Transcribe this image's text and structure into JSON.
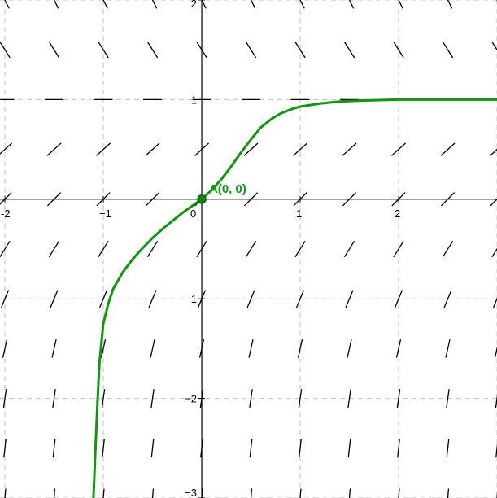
{
  "chart_data": {
    "type": "line",
    "title": "",
    "xlabel": "",
    "ylabel": "",
    "xlim": [
      -2.05,
      3.0
    ],
    "ylim": [
      -3.0,
      2.0
    ],
    "grid": true,
    "x_ticks": [
      -2,
      -1,
      0,
      1,
      2
    ],
    "y_ticks": [
      -3,
      -2,
      -1,
      1,
      2
    ],
    "x_tick_labels": [
      "-2",
      "−1",
      "0",
      "1",
      "2"
    ],
    "y_tick_labels": [
      "−3",
      "−2",
      "−1",
      "1",
      "2"
    ],
    "slope_field": {
      "x_samples": [
        -2.0,
        -1.5,
        -1.0,
        -0.5,
        0.0,
        0.5,
        1.0,
        1.5,
        2.0,
        2.5,
        3.0
      ],
      "y_samples": [
        2.0,
        1.5,
        1.0,
        0.5,
        0.0,
        -0.5,
        -1.0,
        -1.5,
        -2.0,
        -2.5,
        -3.0
      ],
      "slopes_by_row": [
        -2.0,
        -1.6,
        0.0,
        0.9,
        1.0,
        1.6,
        2.4,
        4.5,
        7.0,
        9.0,
        12.0
      ]
    },
    "series": [
      {
        "x": [
          -1.1,
          -1.08,
          -1.06,
          -1.04,
          -1.0,
          -0.95,
          -0.9,
          -0.8,
          -0.7,
          -0.6,
          -0.5,
          -0.4,
          -0.3,
          -0.2,
          -0.1,
          0.0,
          0.1,
          0.2,
          0.3,
          0.4,
          0.5,
          0.6,
          0.7,
          0.8,
          0.9,
          1.0,
          1.2,
          1.4,
          1.6,
          1.8,
          2.0,
          2.3,
          2.6,
          3.0
        ],
        "y": [
          -3.0,
          -2.5,
          -2.05,
          -1.65,
          -1.25,
          -1.05,
          -0.9,
          -0.73,
          -0.6,
          -0.49,
          -0.39,
          -0.3,
          -0.22,
          -0.14,
          -0.07,
          0.0,
          0.09,
          0.2,
          0.33,
          0.47,
          0.6,
          0.72,
          0.8,
          0.86,
          0.9,
          0.93,
          0.96,
          0.98,
          0.99,
          0.995,
          1.0,
          1.0,
          1.0,
          1.0
        ]
      }
    ],
    "point": {
      "label": "A(0, 0)",
      "x": 0,
      "y": 0
    },
    "colors": {
      "curve": "#0a9a0a",
      "point_fill": "#118811",
      "grid": "#c0c0c0",
      "axis": "#000000",
      "slope": "#000000"
    }
  }
}
